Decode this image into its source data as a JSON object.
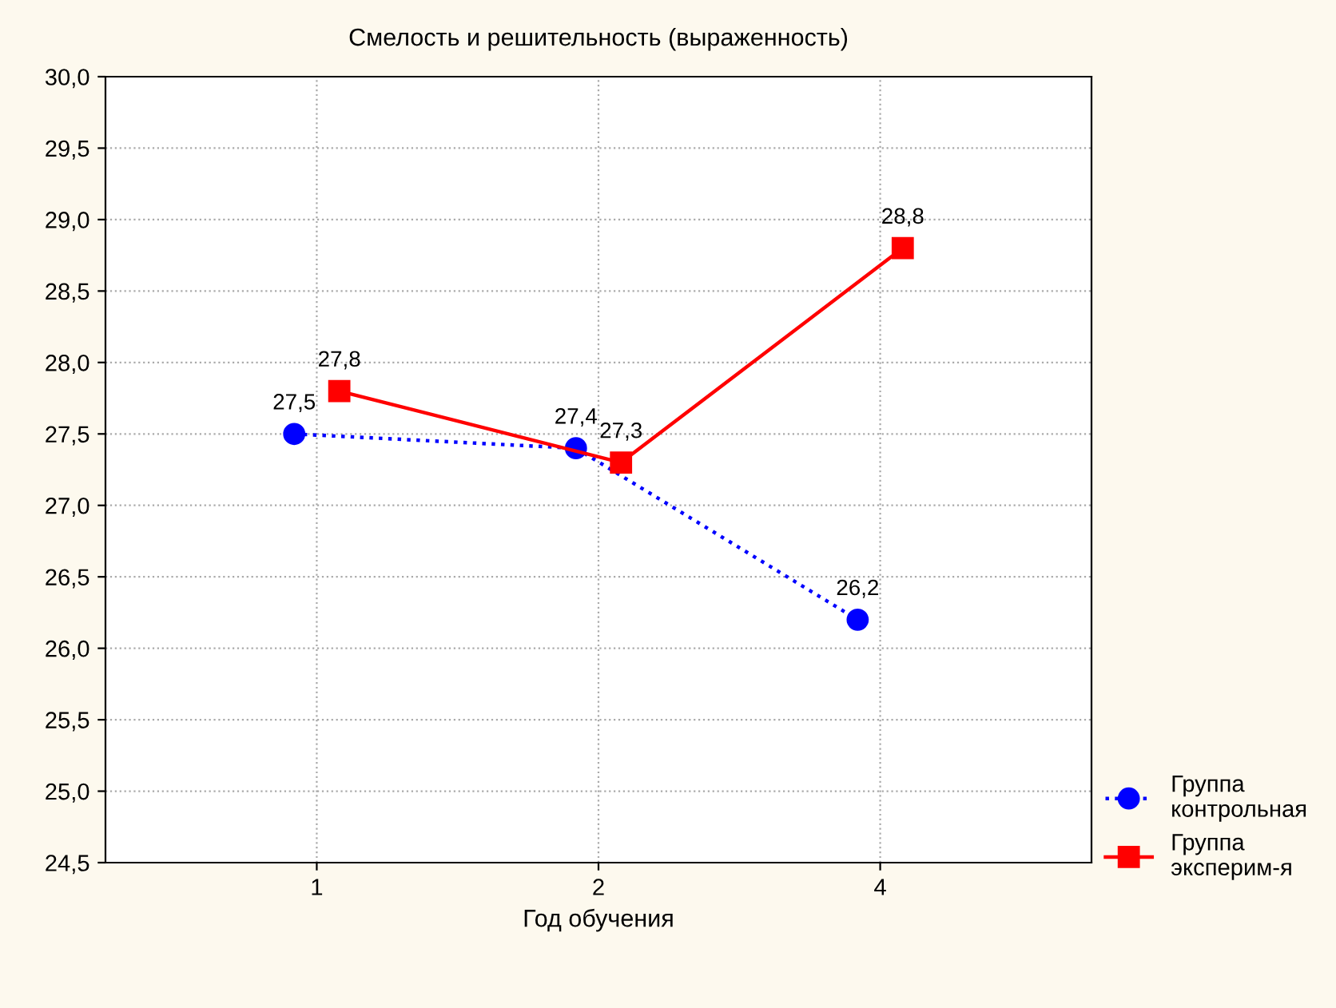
{
  "chart_data": {
    "type": "line",
    "title": "Смелость и решительность (выраженность)",
    "xlabel": "Год обучения",
    "categories": [
      "1",
      "2",
      "4"
    ],
    "series": [
      {
        "name": "Группа\nконтрольная",
        "color": "#0000ff",
        "values": [
          27.5,
          27.4,
          26.2
        ],
        "value_labels": [
          "27,5",
          "27,4",
          "26,2"
        ],
        "marker": "circle",
        "line_style": "dotted"
      },
      {
        "name": "Группа\nэксперим-я",
        "color": "#ff0000",
        "values": [
          27.8,
          27.3,
          28.8
        ],
        "value_labels": [
          "27,8",
          "27,3",
          "28,8"
        ],
        "marker": "square",
        "line_style": "solid"
      }
    ],
    "ylim": [
      24.5,
      30.0
    ],
    "yticks": [
      {
        "value": 24.5,
        "label": "24,5"
      },
      {
        "value": 25.0,
        "label": "25,0"
      },
      {
        "value": 25.5,
        "label": "25,5"
      },
      {
        "value": 26.0,
        "label": "26,0"
      },
      {
        "value": 26.5,
        "label": "26,5"
      },
      {
        "value": 27.0,
        "label": "27,0"
      },
      {
        "value": 27.5,
        "label": "27,5"
      },
      {
        "value": 28.0,
        "label": "28,0"
      },
      {
        "value": 28.5,
        "label": "28,5"
      },
      {
        "value": 29.0,
        "label": "29,0"
      },
      {
        "value": 29.5,
        "label": "29,5"
      },
      {
        "value": 30.0,
        "label": "30,0"
      }
    ],
    "grid": true,
    "legend": "bottom right"
  }
}
